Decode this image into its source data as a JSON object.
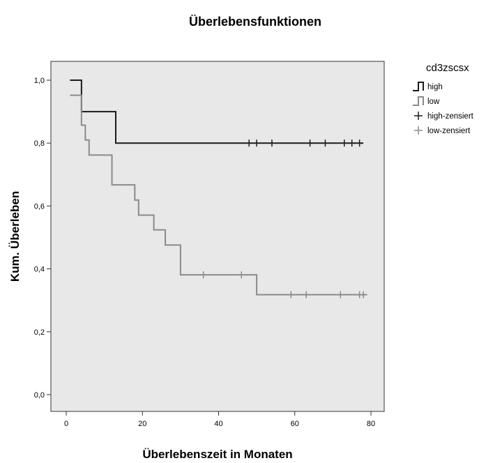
{
  "chart_data": {
    "type": "line",
    "subtype": "kaplan-meier-step",
    "title": "Überlebensfunktionen",
    "xlabel": "Überlebenszeit in Monaten",
    "ylabel": "Kum. Überleben",
    "xlim": [
      -2,
      82
    ],
    "ylim": [
      -0.05,
      1.05
    ],
    "xticks": [
      0,
      20,
      40,
      60,
      80
    ],
    "xtick_labels": [
      "0",
      "20",
      "40",
      "60",
      "80"
    ],
    "yticks": [
      0.0,
      0.2,
      0.4,
      0.6,
      0.8,
      1.0
    ],
    "ytick_labels": [
      "0,0",
      "0,2",
      "0,4",
      "0,6",
      "0,8",
      "1,0"
    ],
    "grid": false,
    "plot_background": "#e8e8e8",
    "legend": {
      "title": "cd3zscsx",
      "placement": "right",
      "entries": [
        "high",
        "low",
        "high-zensiert",
        "low-zensiert"
      ]
    },
    "series": [
      {
        "name": "high",
        "color": "#1a1a1a",
        "steps": [
          [
            1,
            1.0
          ],
          [
            4,
            0.9
          ],
          [
            13,
            0.8
          ],
          [
            78,
            0.8
          ]
        ],
        "censored": [
          [
            48,
            0.8
          ],
          [
            50,
            0.8
          ],
          [
            54,
            0.8
          ],
          [
            64,
            0.8
          ],
          [
            68,
            0.8
          ],
          [
            73,
            0.8
          ],
          [
            75,
            0.8
          ],
          [
            77,
            0.8
          ]
        ]
      },
      {
        "name": "low",
        "color": "#8a8a8a",
        "steps": [
          [
            1,
            0.952
          ],
          [
            4,
            0.857
          ],
          [
            5,
            0.81
          ],
          [
            6,
            0.762
          ],
          [
            12,
            0.667
          ],
          [
            18,
            0.619
          ],
          [
            19,
            0.571
          ],
          [
            23,
            0.524
          ],
          [
            26,
            0.476
          ],
          [
            30,
            0.381
          ],
          [
            50,
            0.318
          ],
          [
            79,
            0.318
          ]
        ],
        "censored": [
          [
            36,
            0.381
          ],
          [
            46,
            0.381
          ],
          [
            59,
            0.318
          ],
          [
            63,
            0.318
          ],
          [
            72,
            0.318
          ],
          [
            77,
            0.318
          ],
          [
            78,
            0.318
          ]
        ]
      }
    ]
  }
}
